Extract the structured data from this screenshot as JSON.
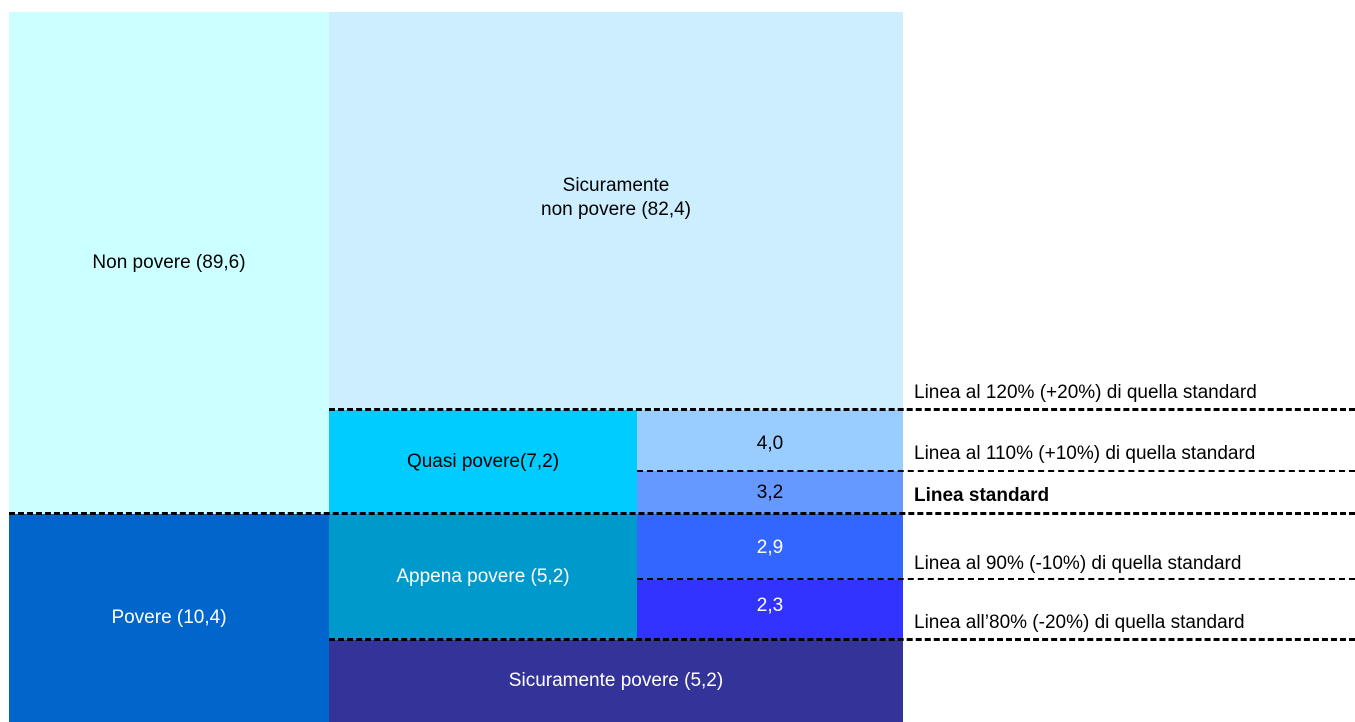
{
  "blocks": {
    "non_povere": "Non povere (89,6)",
    "povere": "Povere (10,4)",
    "sicuramente_non_povere": "Sicuramente\nnon povere (82,4)",
    "quasi_povere": "Quasi povere(7,2)",
    "appena_povere": "Appena povere (5,2)",
    "sicuramente_povere": "Sicuramente povere (5,2)",
    "sub_4_0": "4,0",
    "sub_3_2": "3,2",
    "sub_2_9": "2,9",
    "sub_2_3": "2,3"
  },
  "lines": {
    "l120": "Linea al 120% (+20%) di quella standard",
    "l110": "Linea al 110% (+10%) di quella standard",
    "lstd": "Linea standard",
    "l90": "Linea al 90% (-10%) di quella  standard",
    "l80": "Linea all’80% (-20%) di quella standard"
  },
  "colors": {
    "non_povere": "#ccffff",
    "sicuramente_non_povere": "#cceeff",
    "quasi_povere": "#00ccff",
    "sub_4_0": "#99ccff",
    "sub_3_2": "#6699ff",
    "povere": "#0066cc",
    "appena_povere": "#0099cc",
    "sub_2_9": "#3366ff",
    "sub_2_3": "#3333ff",
    "sicuramente_povere": "#333399"
  }
}
